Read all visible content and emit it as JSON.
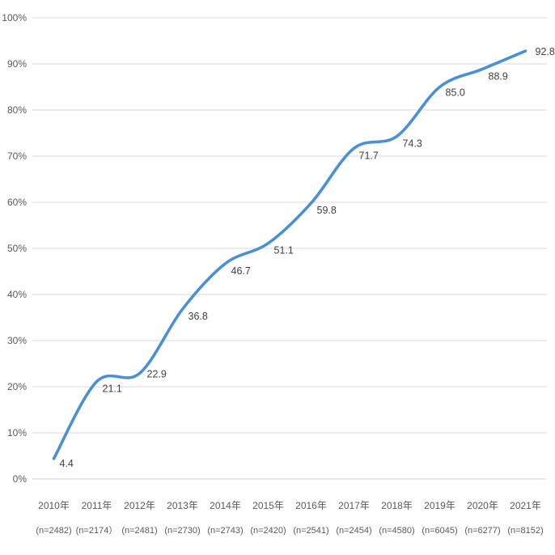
{
  "chart_data": {
    "type": "line",
    "categories": [
      "2010年",
      "2011年",
      "2012年",
      "2013年",
      "2014年",
      "2015年",
      "2016年",
      "2017年",
      "2018年",
      "2019年",
      "2020年",
      "2021年"
    ],
    "sample_sizes": [
      "(n=2482)",
      "(n=2174）",
      "(n=2481)",
      "(n=2730)",
      "(n=2743)",
      "(n=2420)",
      "(n=2541)",
      "(n=2454)",
      "(n=4580)",
      "(n=6045)",
      "(n=6277)",
      "(n=8152)"
    ],
    "values": [
      4.4,
      21.1,
      22.9,
      36.8,
      46.7,
      51.1,
      59.8,
      71.7,
      74.3,
      85.0,
      88.9,
      92.8
    ],
    "data_labels": [
      "4.4",
      "21.1",
      "22.9",
      "36.8",
      "46.7",
      "51.1",
      "59.8",
      "71.7",
      "74.3",
      "85.0",
      "88.9",
      "92.8"
    ],
    "title": "",
    "xlabel": "",
    "ylabel": "",
    "ylim": [
      0,
      100
    ],
    "y_tick_step": 10,
    "y_tick_labels": [
      "0%",
      "10%",
      "20%",
      "30%",
      "40%",
      "50%",
      "60%",
      "70%",
      "80%",
      "90%",
      "100%"
    ],
    "grid": true,
    "legend": "none",
    "line_style": "smooth",
    "colors": {
      "line": "#4a90d5",
      "gridline": "#d9d9d9",
      "axis_text": "#595959",
      "label_text": "#404040",
      "background": "#ffffff"
    }
  }
}
